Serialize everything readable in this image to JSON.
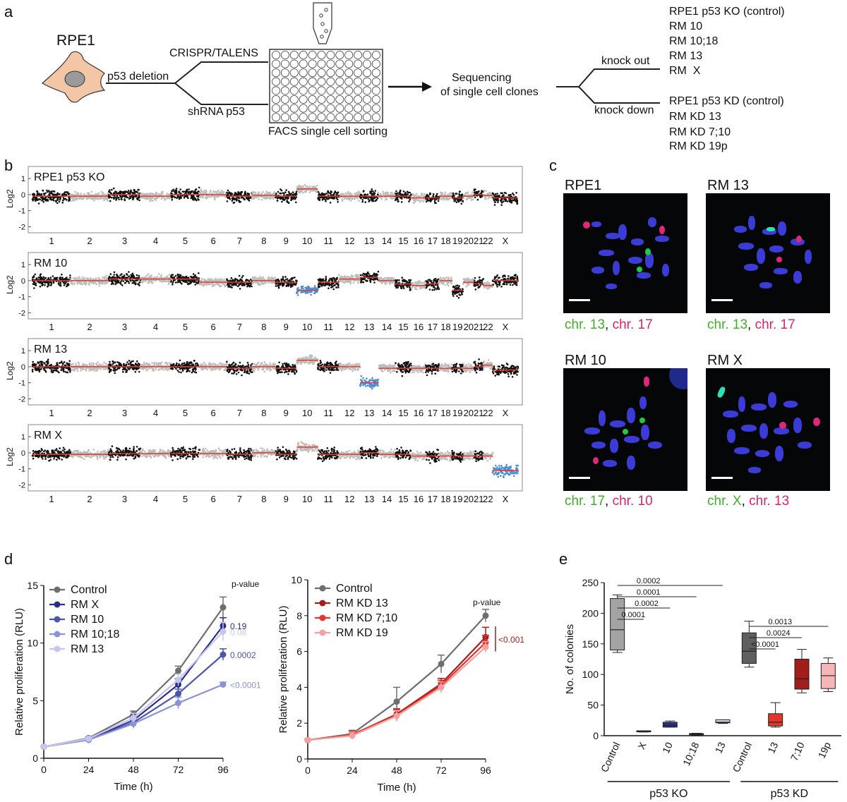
{
  "panel_labels": {
    "a": "a",
    "b": "b",
    "c": "c",
    "d": "d",
    "e": "e"
  },
  "panel_a": {
    "cell_name": "RPE1",
    "deletion": "p53 deletion",
    "method_ko": "CRISPR/TALENS",
    "method_kd": "shRNA p53",
    "sorting": "FACS single cell sorting",
    "sequencing_line1": "Sequencing",
    "sequencing_line2": "of single cell clones",
    "knock_out": "knock out",
    "knock_down": "knock down",
    "ko_list": [
      "RPE1 p53 KO (control)",
      "RM 10",
      "RM 10;18",
      "RM 13",
      "RM  X"
    ],
    "kd_list": [
      "RPE1 p53 KD (control)",
      "RM KD 13",
      "RM KD 7;10",
      "RM KD 19p"
    ]
  },
  "panel_b": {
    "ylabel": "Log2",
    "yticks": [
      "1",
      "0",
      "-1",
      "-2"
    ],
    "chromosomes": [
      "1",
      "2",
      "3",
      "4",
      "5",
      "6",
      "7",
      "8",
      "9",
      "10",
      "11",
      "12",
      "13",
      "14",
      "15",
      "16",
      "17",
      "18",
      "19",
      "20",
      "21",
      "22",
      "X"
    ],
    "panels": [
      {
        "title": "RPE1 p53 KO",
        "segments": [
          -0.1,
          -0.1,
          0,
          -0.1,
          0,
          0,
          -0.1,
          -0.05,
          -0.1,
          0.35,
          -0.1,
          -0.1,
          -0.1,
          -0.1,
          -0.1,
          -0.2,
          -0.2,
          -0.1,
          -0.2,
          -0.1,
          0,
          -0.05,
          -0.2
        ],
        "blue": []
      },
      {
        "title": "RM 10",
        "segments": [
          0,
          0,
          0.1,
          0.1,
          0.1,
          -0.1,
          -0.1,
          0,
          -0.1,
          -0.6,
          -0.1,
          0.1,
          0.2,
          0,
          -0.2,
          -0.3,
          -0.2,
          0,
          -0.6,
          -0.1,
          -0.2,
          -0.3,
          0
        ],
        "blue": [
          10
        ]
      },
      {
        "title": "RM 13",
        "segments": [
          0,
          0,
          0,
          0,
          0,
          0,
          -0.1,
          0,
          -0.1,
          0.4,
          0,
          0,
          -1.0,
          -0.1,
          -0.1,
          -0.1,
          -0.1,
          -0.1,
          -0.1,
          -0.1,
          0,
          0.1,
          -0.2
        ],
        "blue": [
          13
        ]
      },
      {
        "title": "RM X",
        "segments": [
          -0.1,
          -0.1,
          -0.05,
          -0.05,
          -0.05,
          -0.05,
          -0.1,
          0,
          -0.1,
          0.35,
          -0.1,
          -0.1,
          0,
          -0.1,
          -0.1,
          -0.2,
          -0.2,
          -0.2,
          -0.2,
          -0.2,
          -0.2,
          -0.2,
          -1.1
        ],
        "blue": [
          23
        ]
      }
    ]
  },
  "panel_c": {
    "images": [
      {
        "title": "RPE1",
        "cap_green": "chr. 13",
        "cap_sep": ", ",
        "cap_magenta": "chr. 17"
      },
      {
        "title": "RM 13",
        "cap_green": "chr. 13",
        "cap_sep": ", ",
        "cap_magenta": "chr. 17"
      },
      {
        "title": "RM 10",
        "cap_green": "chr. 17",
        "cap_sep": ", ",
        "cap_magenta": "chr. 10"
      },
      {
        "title": "RM X",
        "cap_green": "chr. X",
        "cap_sep": ", ",
        "cap_magenta": "chr. 13"
      }
    ]
  },
  "chart_data": [
    {
      "type": "line",
      "panel": "d-left",
      "xlabel": "Time (h)",
      "ylabel": "Relative proliferation (RLU)",
      "x": [
        0,
        24,
        48,
        72,
        96
      ],
      "xlim": [
        0,
        96
      ],
      "ylim": [
        0,
        15
      ],
      "yticks": [
        0,
        5,
        10,
        15
      ],
      "pvalue_header": "p-value",
      "series": [
        {
          "name": "Control",
          "color": "#6e6e6e",
          "values": [
            1,
            1.75,
            3.8,
            7.6,
            13.1
          ],
          "err": [
            0.05,
            0.1,
            0.3,
            0.4,
            0.9
          ],
          "pvalue": ""
        },
        {
          "name": "RM  X",
          "color": "#2b2f8c",
          "values": [
            1,
            1.65,
            3.3,
            6.4,
            11.5
          ],
          "err": [
            0.05,
            0.1,
            0.4,
            0.5,
            0.7
          ],
          "pvalue": "0.19"
        },
        {
          "name": "RM 10",
          "color": "#4a55b0",
          "values": [
            1,
            1.6,
            3.1,
            5.6,
            9.0
          ],
          "err": [
            0.05,
            0.1,
            0.4,
            0.4,
            0.5
          ],
          "pvalue": "0.0002"
        },
        {
          "name": "RM 10;18",
          "color": "#8c92d6",
          "values": [
            1,
            1.6,
            3.0,
            4.8,
            6.4
          ],
          "err": [
            0.05,
            0.1,
            0.4,
            0.5,
            0.2
          ],
          "pvalue": "<0.0001"
        },
        {
          "name": "RM 13",
          "color": "#c3c6ef",
          "values": [
            1,
            1.7,
            3.5,
            6.8,
            11.0
          ],
          "err": [
            0.05,
            0.1,
            0.4,
            0.5,
            0.8
          ],
          "pvalue": "0.08"
        }
      ]
    },
    {
      "type": "line",
      "panel": "d-right",
      "xlabel": "Time (h)",
      "ylabel": "Relative proliferation (RLU)",
      "x": [
        0,
        24,
        48,
        72,
        96
      ],
      "xlim": [
        0,
        96
      ],
      "ylim": [
        0,
        10
      ],
      "yticks": [
        0,
        2,
        4,
        6,
        8,
        10
      ],
      "pvalue_header": "p-value",
      "pvalue_group": "<0.001",
      "series": [
        {
          "name": "Control",
          "color": "#6e6e6e",
          "values": [
            1.05,
            1.4,
            3.2,
            5.3,
            8.0
          ],
          "err": [
            0.05,
            0.2,
            0.8,
            0.5,
            0.35
          ]
        },
        {
          "name": "RM KD 13",
          "color": "#a31d1d",
          "values": [
            1.05,
            1.35,
            2.5,
            4.2,
            6.8
          ],
          "err": [
            0.05,
            0.2,
            0.3,
            0.3,
            0.55
          ]
        },
        {
          "name": "RM KD 7;10",
          "color": "#e8332a",
          "values": [
            1.05,
            1.35,
            2.45,
            4.1,
            6.5
          ],
          "err": [
            0.05,
            0.2,
            0.3,
            0.3,
            0.4
          ]
        },
        {
          "name": "RM KD 19",
          "color": "#f2a0a0",
          "values": [
            1.05,
            1.3,
            2.4,
            4.0,
            6.25
          ],
          "err": [
            0.05,
            0.2,
            0.3,
            0.3,
            0.3
          ]
        }
      ]
    },
    {
      "type": "box",
      "panel": "e",
      "ylabel": "No. of colonies",
      "ylim": [
        0,
        250
      ],
      "yticks": [
        0,
        50,
        100,
        150,
        200,
        250
      ],
      "group_labels": [
        "p53 KO",
        "p53 KD"
      ],
      "categories": [
        "Control",
        "X",
        "10",
        "10;18",
        "13",
        "Control",
        "13",
        "7;10",
        "19p"
      ],
      "boxes": [
        {
          "min": 136,
          "q1": 140,
          "median": 173,
          "q3": 224,
          "max": 230,
          "color": "#a3a3a3"
        },
        {
          "min": 6,
          "q1": 7,
          "median": 7.5,
          "q3": 8,
          "max": 8,
          "color": "#2b2f8c"
        },
        {
          "min": 14,
          "q1": 14,
          "median": 17,
          "q3": 22,
          "max": 24,
          "color": "#2b2f8c"
        },
        {
          "min": 1,
          "q1": 1.5,
          "median": 2.5,
          "q3": 3.5,
          "max": 4,
          "color": "#5a5f9e"
        },
        {
          "min": 20,
          "q1": 21,
          "median": 22,
          "q3": 26,
          "max": 26,
          "color": "#d7d8f2"
        },
        {
          "min": 112,
          "q1": 118,
          "median": 138,
          "q3": 168,
          "max": 187,
          "color": "#5f5f5f"
        },
        {
          "min": 14,
          "q1": 16,
          "median": 22,
          "q3": 36,
          "max": 54,
          "color": "#e3352a"
        },
        {
          "min": 70,
          "q1": 76,
          "median": 93,
          "q3": 125,
          "max": 141,
          "color": "#a31d1d"
        },
        {
          "min": 72,
          "q1": 77,
          "median": 98,
          "q3": 118,
          "max": 127,
          "color": "#f7b6b6"
        }
      ],
      "comparisons": [
        {
          "from": 0,
          "to": 1,
          "label": "0.0001"
        },
        {
          "from": 0,
          "to": 2,
          "label": "0.0002"
        },
        {
          "from": 0,
          "to": 3,
          "label": "0.0001"
        },
        {
          "from": 0,
          "to": 4,
          "label": "0.0002"
        },
        {
          "from": 5,
          "to": 6,
          "label": "<0.0001"
        },
        {
          "from": 5,
          "to": 7,
          "label": "0.0024"
        },
        {
          "from": 5,
          "to": 8,
          "label": "0.0013"
        }
      ]
    }
  ]
}
